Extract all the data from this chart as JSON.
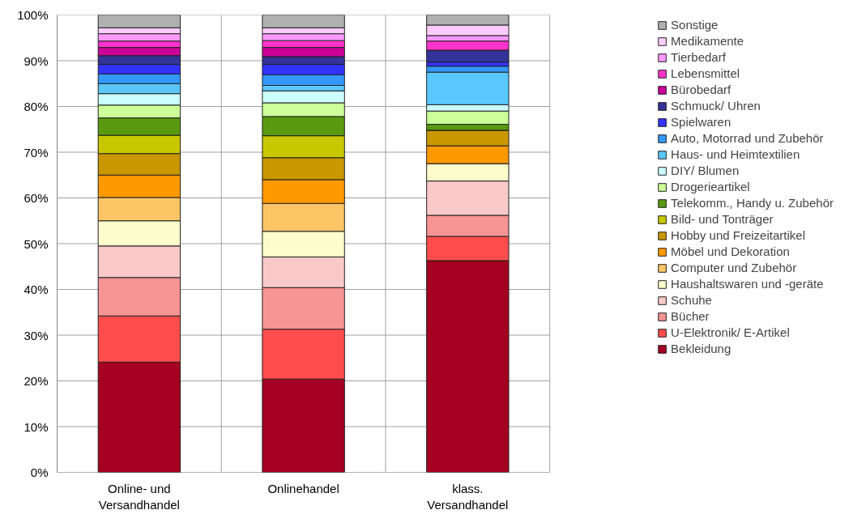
{
  "chart_data": {
    "type": "bar",
    "stacked": true,
    "categories": [
      "Online- und Versandhandel",
      "Onlinehandel",
      "klass. Versandhandel"
    ],
    "ylim": [
      0,
      100
    ],
    "yticks": [
      {
        "value": 0,
        "label": "0%"
      },
      {
        "value": 10,
        "label": "10%"
      },
      {
        "value": 20,
        "label": "20%"
      },
      {
        "value": 30,
        "label": "30%"
      },
      {
        "value": 40,
        "label": "40%"
      },
      {
        "value": 50,
        "label": "50%"
      },
      {
        "value": 60,
        "label": "60%"
      },
      {
        "value": 70,
        "label": "70%"
      },
      {
        "value": 80,
        "label": "80%"
      },
      {
        "value": 90,
        "label": "90%"
      },
      {
        "value": 100,
        "label": "100%"
      }
    ],
    "grid": true,
    "legend": "right",
    "series": [
      {
        "name": "Bekleidung",
        "color": "#a50021",
        "values": [
          24.1,
          20.4,
          46.3
        ]
      },
      {
        "name": "U-Elektronik/ E-Artikel",
        "color": "#ff4d4d",
        "values": [
          10.1,
          10.9,
          5.3
        ]
      },
      {
        "name": "Bücher",
        "color": "#f79494",
        "values": [
          8.4,
          9.1,
          4.6
        ]
      },
      {
        "name": "Schuhe",
        "color": "#f9c8c8",
        "values": [
          6.9,
          6.7,
          7.5
        ]
      },
      {
        "name": "Haushaltswaren und -geräte",
        "color": "#fdfccc",
        "values": [
          5.5,
          5.6,
          3.8
        ]
      },
      {
        "name": "Computer und Zubehör",
        "color": "#fbc566",
        "values": [
          5.1,
          6.1,
          null
        ]
      },
      {
        "name": "Möbel und Dekoration",
        "color": "#ff9900",
        "values": [
          4.9,
          5.2,
          3.9
        ]
      },
      {
        "name": "Hobby und Freizeitartikel",
        "color": "#c99700",
        "values": [
          4.7,
          4.8,
          3.4
        ]
      },
      {
        "name": "Bild- und Tonträger",
        "color": "#c8c800",
        "values": [
          4.0,
          4.8,
          null
        ]
      },
      {
        "name": "Telekomm., Handy u. Zubehör",
        "color": "#5a9a10",
        "values": [
          3.8,
          4.2,
          1.3
        ]
      },
      {
        "name": "Drogerieartikel",
        "color": "#ccff99",
        "values": [
          2.8,
          3.0,
          2.9
        ]
      },
      {
        "name": "DIY/ Blumen",
        "color": "#ccffff",
        "values": [
          2.5,
          2.6,
          1.4
        ]
      },
      {
        "name": "Haus- und Heimtextilien",
        "color": "#5ac8ff",
        "values": [
          2.2,
          1.2,
          7.1
        ]
      },
      {
        "name": "Auto, Motorrad und Zubehör",
        "color": "#3399ff",
        "values": [
          2.1,
          2.3,
          1.3
        ]
      },
      {
        "name": "Spielwaren",
        "color": "#3333ff",
        "values": [
          2.1,
          2.3,
          0.9
        ]
      },
      {
        "name": "Schmuck/ Uhren",
        "color": "#333399",
        "values": [
          1.9,
          1.7,
          2.6
        ]
      },
      {
        "name": "Bürobedarf",
        "color": "#cc0099",
        "values": [
          1.8,
          2.0,
          null
        ]
      },
      {
        "name": "Lebensmittel",
        "color": "#ff33cc",
        "values": [
          1.4,
          1.5,
          2.0
        ]
      },
      {
        "name": "Tierbedarf",
        "color": "#ff99ff",
        "values": [
          1.6,
          1.5,
          1.2
        ]
      },
      {
        "name": "Medikamente",
        "color": "#ffccff",
        "values": [
          1.3,
          1.3,
          2.3
        ]
      },
      {
        "name": "Sonstige",
        "color": "#b0b0b0",
        "values": [
          2.8,
          2.8,
          2.2
        ]
      }
    ]
  }
}
